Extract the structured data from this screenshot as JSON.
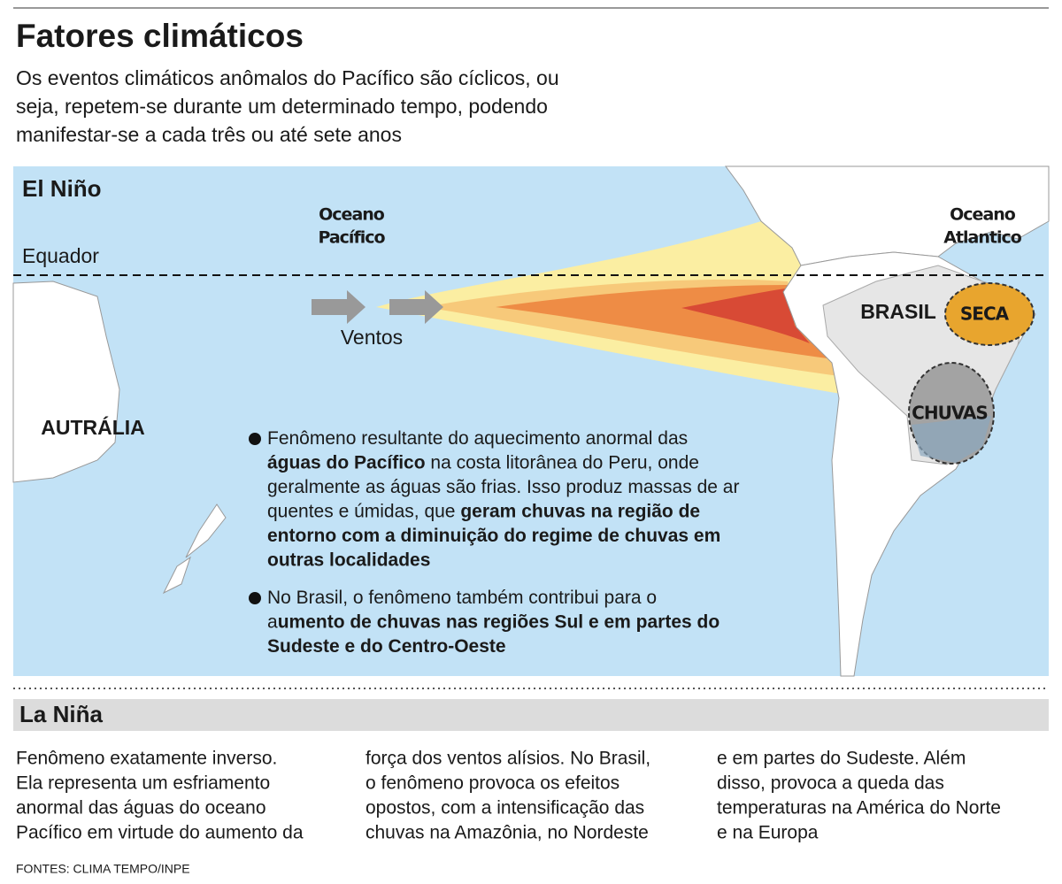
{
  "header": {
    "title": "Fatores climáticos",
    "subtitle": [
      "Os eventos climáticos anômalos do Pacífico são cíclicos, ou",
      "seja, repetem-se durante um determinado tempo, podendo",
      "manifestar-se a cada três ou até sete anos"
    ]
  },
  "el_nino": {
    "title": "El Niño",
    "map": {
      "equator": "Equador",
      "pacific": [
        "Oceano",
        "Pacífico"
      ],
      "atlantic": [
        "Oceano",
        "Atlantico"
      ],
      "winds": "Ventos",
      "australia": "AUTRÁLIA",
      "brazil": "BRASIL",
      "drought": "SECA",
      "rain": "CHUVAS"
    },
    "bullets": [
      {
        "lines": [
          [
            {
              "text": "Fenômeno resultante do aquecimento anormal das"
            }
          ],
          [
            {
              "text": "águas do Pacífico",
              "bold": true
            },
            {
              "text": " na costa litorânea do Peru, onde"
            }
          ],
          [
            {
              "text": "geralmente as águas são frias. Isso produz massas de ar"
            }
          ],
          [
            {
              "text": "quentes e úmidas, que "
            },
            {
              "text": "geram chuvas na região de",
              "bold": true
            }
          ],
          [
            {
              "text": "entorno com a diminuição do regime de chuvas em",
              "bold": true
            }
          ],
          [
            {
              "text": "outras localidades",
              "bold": true
            }
          ]
        ]
      },
      {
        "lines": [
          [
            {
              "text": "No Brasil, o fenômeno também contribui para o"
            }
          ],
          [
            {
              "text": "a"
            },
            {
              "text": "umento de chuvas nas regiões Sul e em partes do",
              "bold": true
            }
          ],
          [
            {
              "text": "Sudeste e do Centro-Oeste",
              "bold": true
            }
          ]
        ]
      }
    ]
  },
  "la_nina": {
    "title": "La Niña",
    "columns": [
      [
        "Fenômeno exatamente inverso.",
        "Ela representa um esfriamento",
        "anormal das águas do oceano",
        "Pacífico em virtude do aumento da"
      ],
      [
        "força dos ventos alísios. No Brasil,",
        "o fenômeno provoca os efeitos",
        "opostos, com a intensificação das",
        "chuvas na Amazônia, no Nordeste"
      ],
      [
        "e em partes do Sudeste. Além",
        "disso, provoca a queda das",
        "temperaturas na América do Norte",
        "e na Europa"
      ]
    ]
  },
  "footer": {
    "source": "FONTES: CLIMA TEMPO/INPE"
  }
}
